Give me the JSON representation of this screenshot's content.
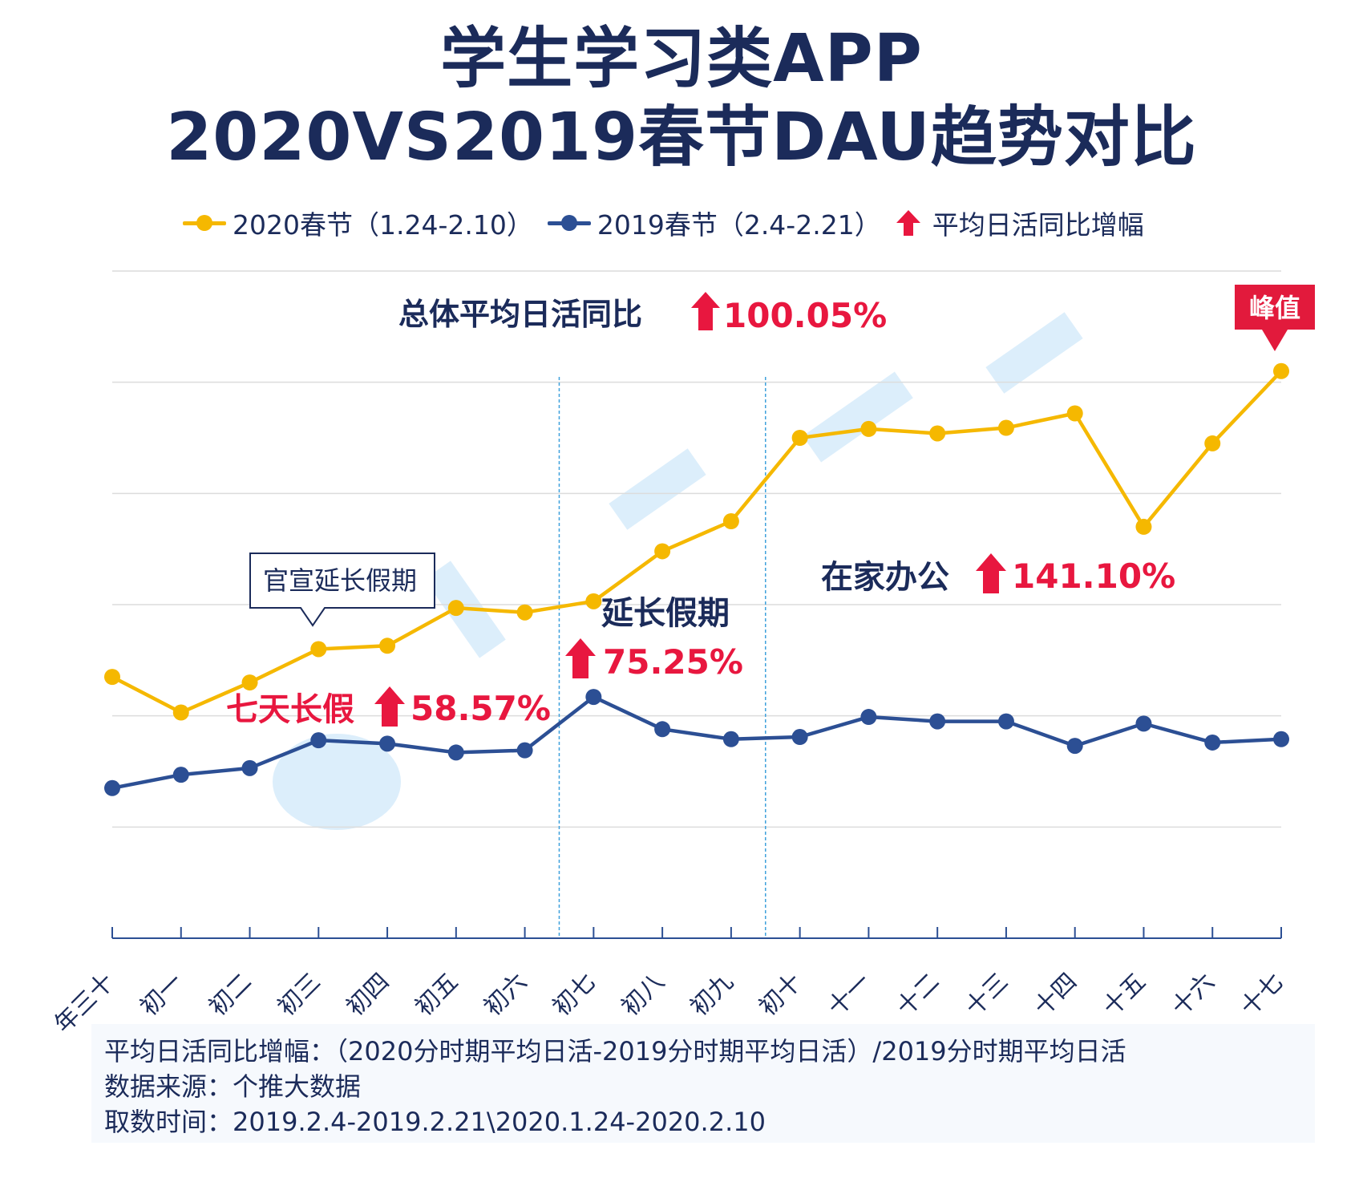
{
  "title_line1": "学生学习类APP",
  "title_line2": "2020VS2019春节DAU趋势对比",
  "legend": [
    {
      "label": "2020春节（1.24-2.10）",
      "color": "#f5b800"
    },
    {
      "label": "2019春节（2.4-2.21）",
      "color": "#2c4f94"
    },
    {
      "label": "平均日活同比增幅",
      "color": "#e8173f"
    }
  ],
  "annotations": {
    "overall_label": "总体平均日活同比",
    "overall_value": "100.05%",
    "seven_day_label": "七天长假",
    "seven_day_value": "58.57%",
    "extended_label": "延长假期",
    "extended_value": "75.25%",
    "home_label": "在家办公",
    "home_value": "141.10%",
    "official_callout": "官宣延长假期",
    "peak_badge": "峰值"
  },
  "colors": {
    "series_2020": "#f5b800",
    "series_2019": "#2c4f94",
    "accent_red": "#e8173f",
    "title_navy": "#1b2b5a",
    "grid": "#dcdcdc",
    "divider": "#3fa1dc",
    "axis": "#2c4f94"
  },
  "chart_data": {
    "type": "line",
    "categories": [
      "年三十",
      "初一",
      "初二",
      "初三",
      "初四",
      "初五",
      "初六",
      "初七",
      "初八",
      "初九",
      "初十",
      "十一",
      "十二",
      "十三",
      "十四",
      "十五",
      "十六",
      "十七"
    ],
    "ylim": [
      0,
      6
    ],
    "grid": true,
    "y_ticks_shown": false,
    "series": [
      {
        "name": "2020春节（1.24-2.10）",
        "values": [
          2.35,
          2.03,
          2.3,
          2.6,
          2.63,
          2.97,
          2.93,
          3.03,
          3.48,
          3.75,
          4.5,
          4.58,
          4.54,
          4.59,
          4.72,
          3.7,
          4.45,
          5.1
        ]
      },
      {
        "name": "2019春节（2.4-2.21）",
        "values": [
          1.35,
          1.47,
          1.53,
          1.78,
          1.75,
          1.67,
          1.69,
          2.17,
          1.88,
          1.79,
          1.81,
          1.99,
          1.95,
          1.95,
          1.73,
          1.93,
          1.76,
          1.79
        ]
      }
    ]
  }
}
